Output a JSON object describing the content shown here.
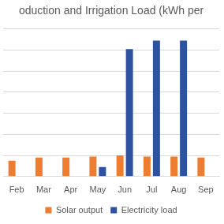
{
  "chart_data": {
    "type": "bar",
    "title": "oduction and Irrigation Load (kWh per",
    "categories": [
      "Feb",
      "Mar",
      "Apr",
      "May",
      "Jun",
      "Jul",
      "Aug",
      "Sep"
    ],
    "series": [
      {
        "name": "Solar output",
        "color": "#ed7d31",
        "values": [
          0.75,
          0.9,
          0.9,
          0.95,
          1.0,
          0.95,
          0.95,
          0.9
        ]
      },
      {
        "name": "Electricity load",
        "color": "#2f52a0",
        "values": [
          0,
          0,
          0,
          0.45,
          6.05,
          6.45,
          6.45,
          0
        ]
      }
    ],
    "ylim": [
      0,
      7
    ],
    "yticks": [
      0,
      1,
      2,
      3,
      4,
      5,
      6,
      7
    ],
    "grid": true,
    "legend": "bottom",
    "tick_labels": "x"
  }
}
